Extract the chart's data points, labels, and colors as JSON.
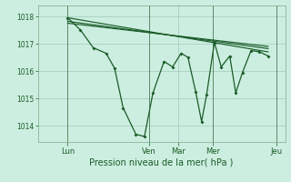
{
  "background_color": "#cceee0",
  "grid_color": "#aad4c4",
  "line_color": "#1a5c28",
  "xlabel": "Pression niveau de la mer( hPa )",
  "ylim": [
    1013.4,
    1018.4
  ],
  "yticks": [
    1014,
    1015,
    1016,
    1017,
    1018
  ],
  "xlim": [
    0,
    290
  ],
  "day_positions": [
    35,
    130,
    165,
    205,
    280
  ],
  "day_labels": [
    "Lun",
    "Ven",
    "Mar",
    "Mer",
    "Jeu"
  ],
  "vline_positions": [
    35,
    130,
    205,
    280
  ],
  "series1": [
    [
      35,
      1017.95
    ],
    [
      50,
      1017.5
    ],
    [
      65,
      1016.85
    ],
    [
      80,
      1016.65
    ],
    [
      90,
      1016.1
    ],
    [
      100,
      1014.65
    ],
    [
      115,
      1013.68
    ],
    [
      125,
      1013.6
    ],
    [
      135,
      1015.2
    ],
    [
      148,
      1016.35
    ],
    [
      158,
      1016.15
    ],
    [
      168,
      1016.65
    ],
    [
      176,
      1016.5
    ],
    [
      185,
      1015.25
    ],
    [
      192,
      1014.15
    ],
    [
      198,
      1015.15
    ],
    [
      207,
      1017.05
    ],
    [
      215,
      1016.15
    ],
    [
      225,
      1016.55
    ],
    [
      232,
      1015.2
    ],
    [
      240,
      1015.95
    ],
    [
      250,
      1016.75
    ],
    [
      260,
      1016.7
    ],
    [
      270,
      1016.55
    ]
  ],
  "series2": [
    [
      35,
      1017.95
    ],
    [
      270,
      1016.7
    ]
  ],
  "series3": [
    [
      35,
      1017.82
    ],
    [
      270,
      1016.82
    ]
  ],
  "series4": [
    [
      35,
      1017.75
    ],
    [
      270,
      1016.9
    ]
  ]
}
